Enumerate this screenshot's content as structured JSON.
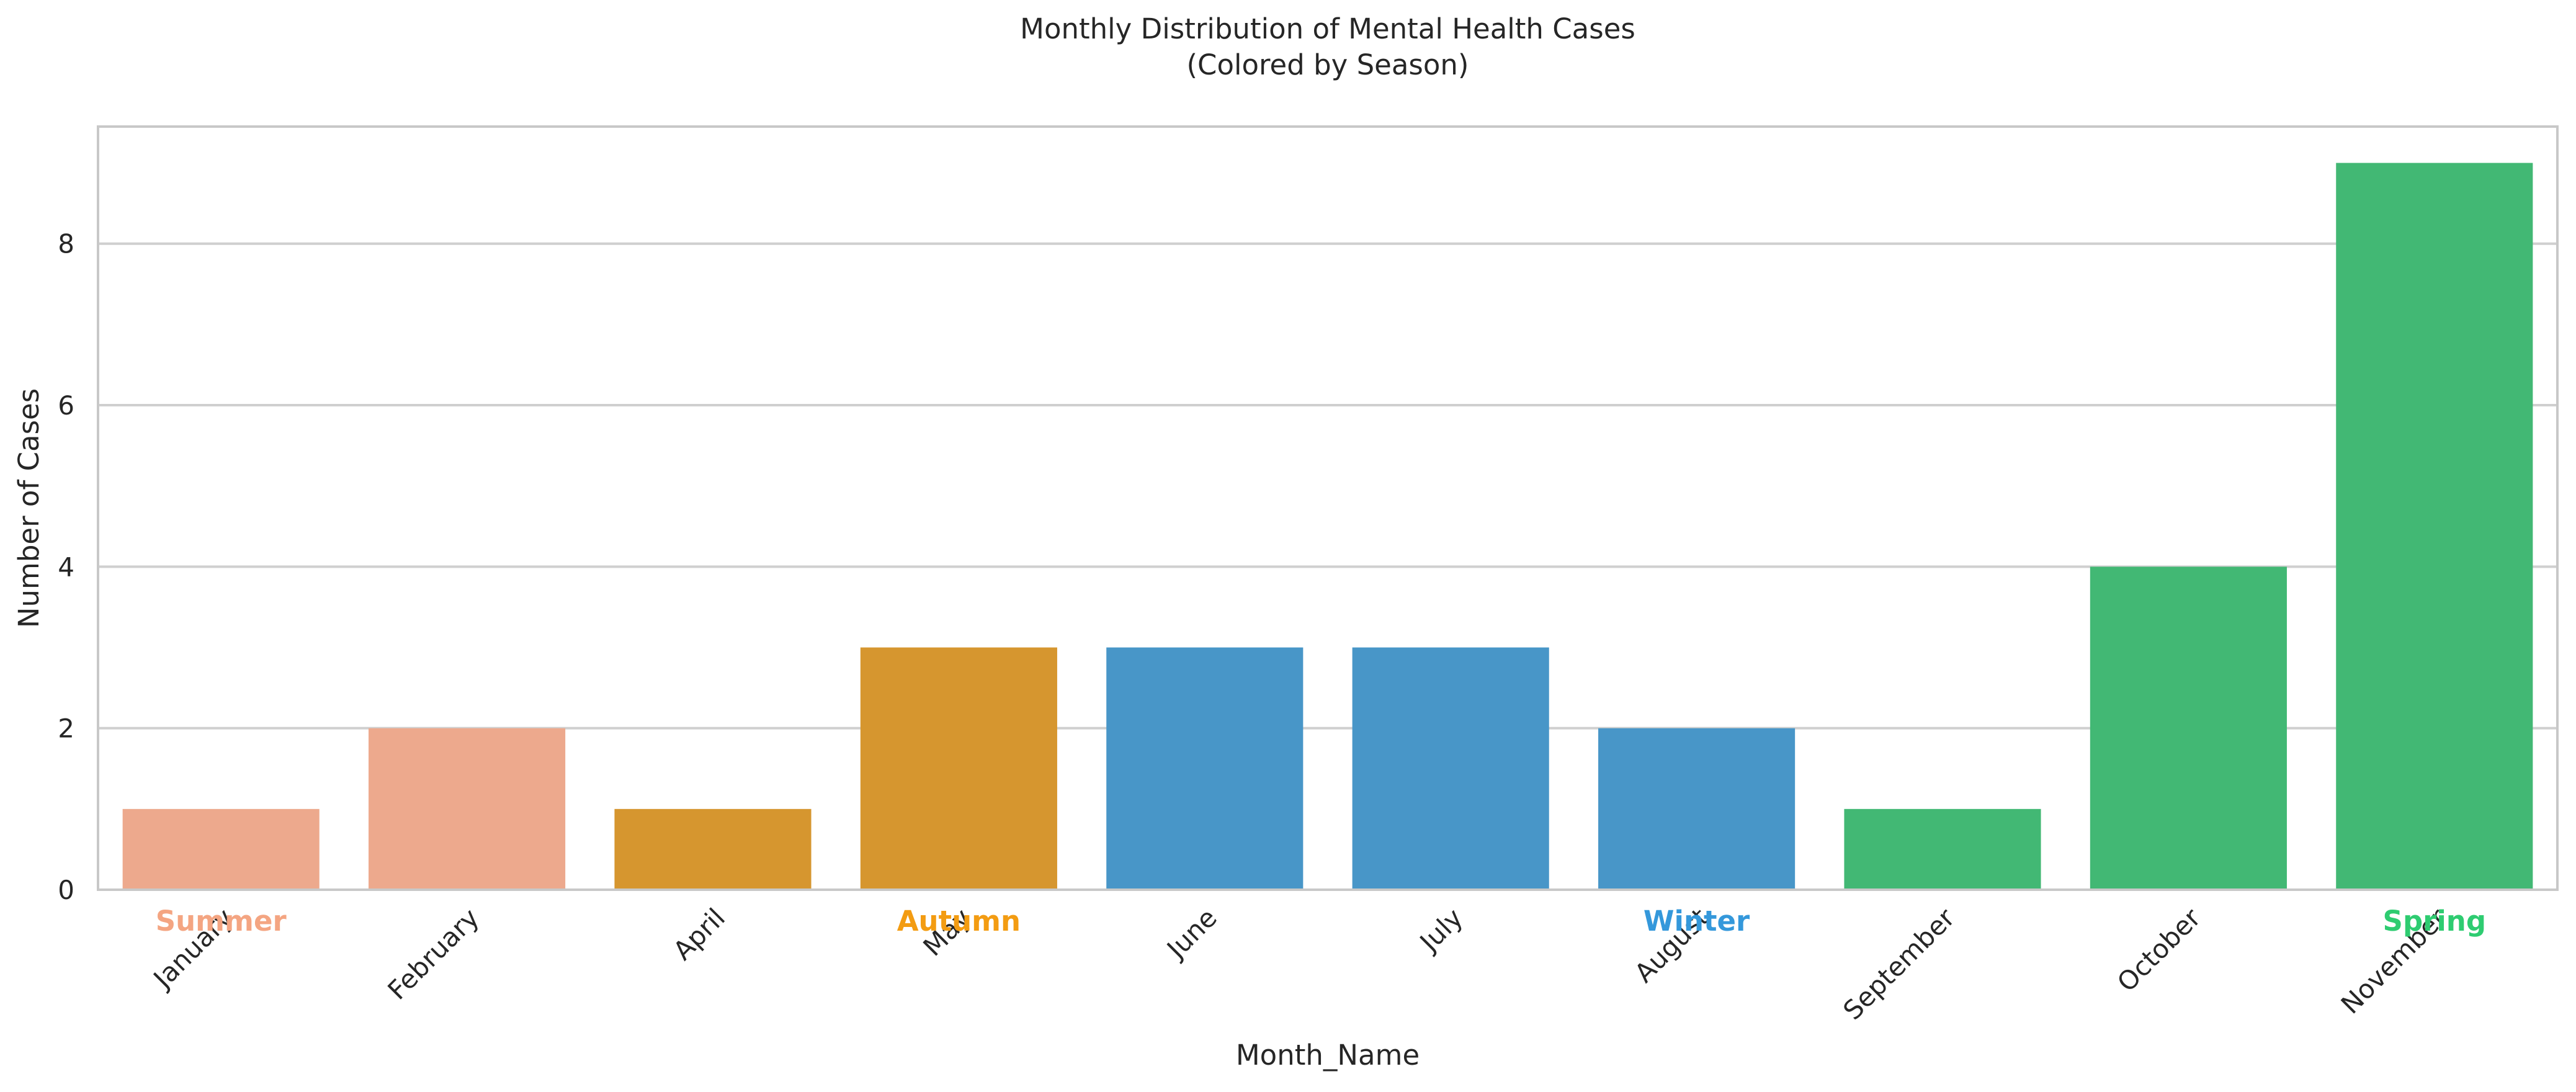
{
  "chart_data": {
    "type": "bar",
    "title": "Monthly Distribution of Mental Health Cases",
    "subtitle": "(Colored by Season)",
    "xlabel": "Month_Name",
    "ylabel": "Number of Cases",
    "ylim": [
      0,
      9.45
    ],
    "yticks": [
      0,
      2,
      4,
      6,
      8
    ],
    "grid": true,
    "categories": [
      "January",
      "February",
      "April",
      "May",
      "June",
      "July",
      "August",
      "September",
      "October",
      "November"
    ],
    "values": [
      1,
      2,
      1,
      3,
      3,
      3,
      2,
      1,
      4,
      9
    ],
    "bar_colors": [
      "#EDA98D",
      "#EDA98D",
      "#D6962F",
      "#D6962F",
      "#4896C8",
      "#4896C8",
      "#4896C8",
      "#42B874",
      "#42B874",
      "#42B874"
    ],
    "season_labels": [
      {
        "text": "Summer",
        "category": "January",
        "color": "#F4A582"
      },
      {
        "text": "Autumn",
        "category": "May",
        "color": "#F39C12"
      },
      {
        "text": "Winter",
        "category": "August",
        "color": "#3498DB"
      },
      {
        "text": "Spring",
        "category": "November",
        "color": "#2ECC71"
      }
    ]
  }
}
